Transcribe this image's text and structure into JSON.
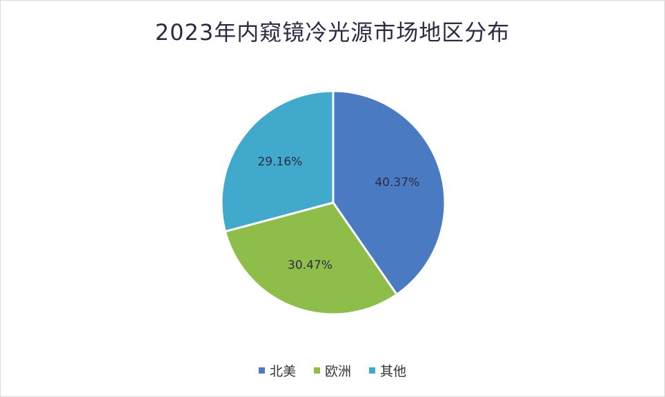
{
  "chart_data": {
    "type": "pie",
    "title": "2023年内窥镜冷光源市场地区分布",
    "categories": [
      "北美",
      "欧洲",
      "其他"
    ],
    "values": [
      40.37,
      30.47,
      29.16
    ],
    "value_labels": [
      "40.37%",
      "30.47%",
      "29.16%"
    ],
    "colors": [
      "#4a7bc2",
      "#8ebd4a",
      "#41a9cc"
    ],
    "start_angle_deg": 0,
    "direction": "clockwise",
    "legend_position": "bottom"
  }
}
